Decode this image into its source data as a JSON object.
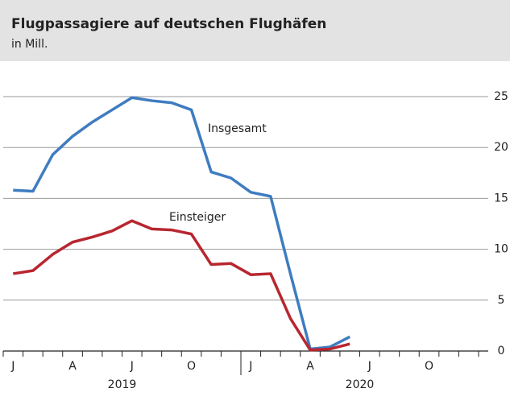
{
  "chart_data": {
    "type": "line",
    "title": "Flugpassagiere auf deutschen Flughäfen",
    "subtitle": "in Mill.",
    "categories": [
      "J",
      null,
      null,
      "A",
      null,
      null,
      "J",
      null,
      null,
      "O",
      null,
      null,
      "J",
      null,
      null,
      "A",
      null,
      null,
      "J",
      null,
      null,
      "O",
      null,
      null
    ],
    "x_groups": [
      "2019",
      "2020"
    ],
    "series": [
      {
        "name": "Insgesamt",
        "color": "#3f7cc0",
        "values": [
          15.8,
          15.7,
          19.3,
          21.1,
          22.5,
          23.7,
          24.9,
          24.6,
          24.4,
          23.7,
          17.6,
          17.0,
          15.6,
          15.2,
          7.6,
          0.2,
          0.4,
          1.4,
          null,
          null,
          null,
          null,
          null,
          null
        ]
      },
      {
        "name": "Einsteiger",
        "color": "#b8262f",
        "values": [
          7.6,
          7.9,
          9.5,
          10.7,
          11.2,
          11.8,
          12.8,
          12.0,
          11.9,
          11.5,
          8.5,
          8.6,
          7.5,
          7.6,
          3.2,
          0.1,
          0.2,
          0.7,
          null,
          null,
          null,
          null,
          null,
          null
        ]
      }
    ],
    "ylim": [
      0,
      25
    ],
    "yticks": [
      0,
      5,
      10,
      15,
      20,
      25
    ],
    "grid": true
  }
}
